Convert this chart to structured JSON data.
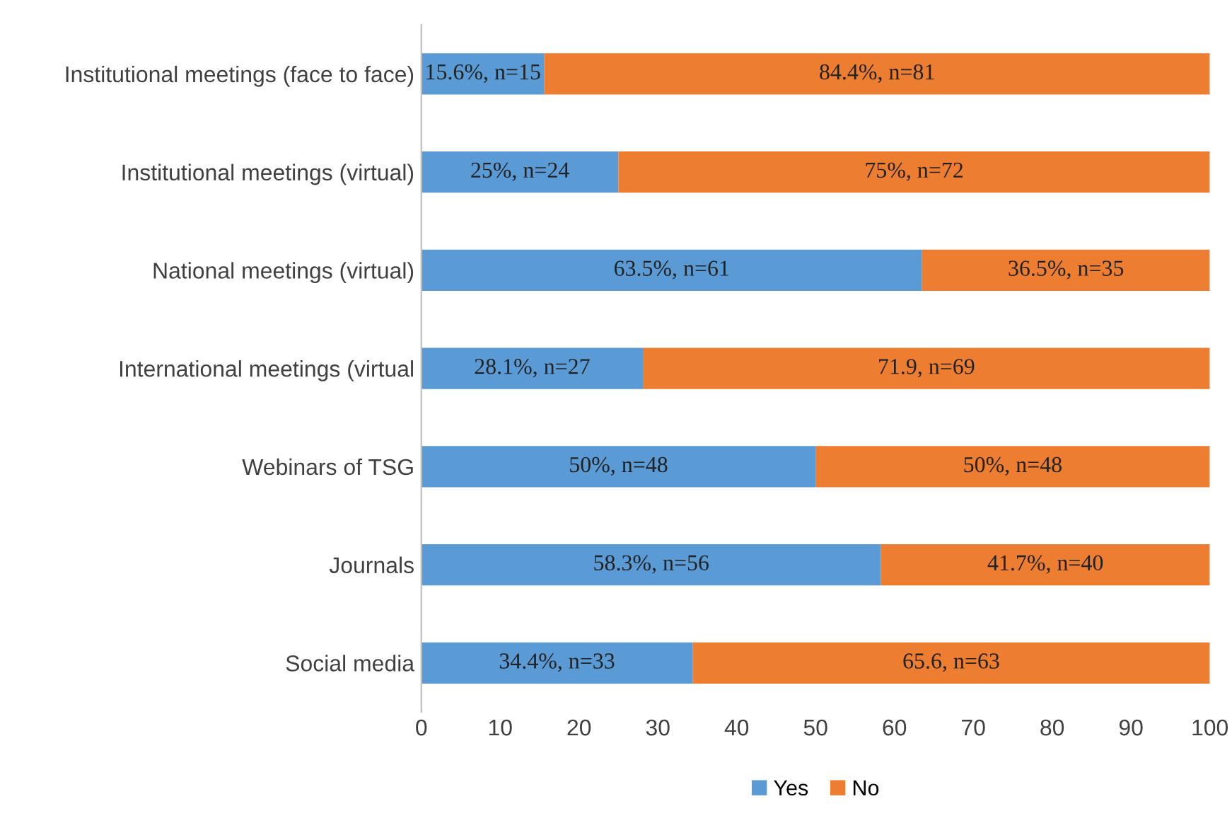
{
  "chart_data": {
    "type": "bar",
    "orientation": "horizontal",
    "stacked": true,
    "categories": [
      "Institutional meetings (face to face)",
      "Institutional meetings (virtual)",
      "National meetings (virtual)",
      "International meetings (virtual",
      "Webinars of TSG",
      "Journals",
      "Social media"
    ],
    "series": [
      {
        "name": "Yes",
        "color": "#5b9bd5",
        "values": [
          15.6,
          25,
          63.5,
          28.1,
          50,
          58.3,
          34.4
        ],
        "value_labels": [
          "15.6%, n=15",
          "25%, n=24",
          "63.5%, n=61",
          "28.1%, n=27",
          "50%, n=48",
          "58.3%, n=56",
          "34.4%, n=33"
        ]
      },
      {
        "name": "No",
        "color": "#ed7d31",
        "values": [
          84.4,
          75,
          36.5,
          71.9,
          50,
          41.7,
          65.6
        ],
        "value_labels": [
          "84.4%, n=81",
          "75%, n=72",
          "36.5%, n=35",
          "71.9, n=69",
          "50%, n=48",
          "41.7%, n=40",
          "65.6, n=63"
        ]
      }
    ],
    "xlim": [
      0,
      100
    ],
    "xticks": [
      0,
      10,
      20,
      30,
      40,
      50,
      60,
      70,
      80,
      90,
      100
    ],
    "grid": false,
    "legend": "bottom"
  }
}
